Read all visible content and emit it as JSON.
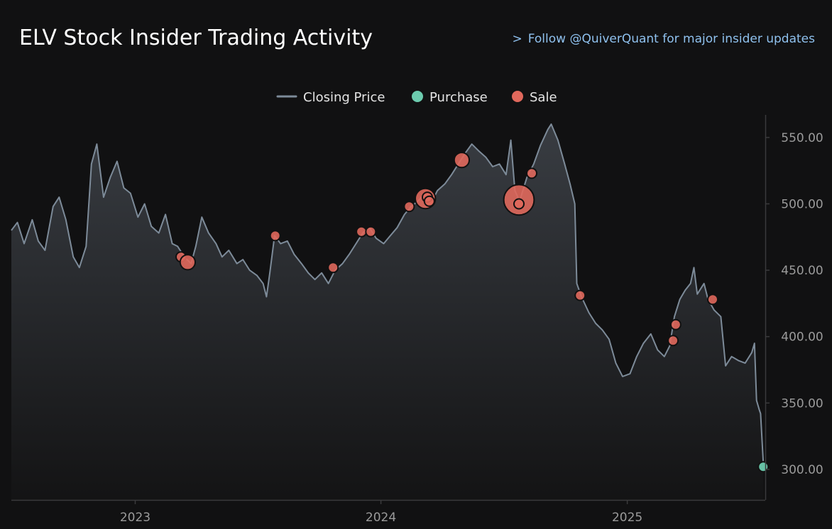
{
  "header": {
    "title": "ELV Stock Insider Trading Activity",
    "follow_chevron": ">",
    "follow_link": "Follow @QuiverQuant for major insider updates"
  },
  "colors": {
    "background": "#111112",
    "price_line": "#7d8b99",
    "purchase": "#6ccbae",
    "sale": "#e0685c",
    "link": "#8fc1ee"
  },
  "chart_data": {
    "type": "line",
    "title": "ELV Stock Insider Trading Activity",
    "xlabel": "",
    "ylabel": "",
    "legend_position": "top-center",
    "grid": false,
    "x_range": [
      "2022-07-01",
      "2025-07-25"
    ],
    "ylim": [
      277,
      567
    ],
    "x_ticks": [
      {
        "date": "2023-01-01",
        "label": "2023"
      },
      {
        "date": "2024-01-01",
        "label": "2024"
      },
      {
        "date": "2025-01-01",
        "label": "2025"
      }
    ],
    "y_ticks": [
      {
        "value": 300,
        "label": "300.00"
      },
      {
        "value": 350,
        "label": "350.00"
      },
      {
        "value": 400,
        "label": "400.00"
      },
      {
        "value": 450,
        "label": "450.00"
      },
      {
        "value": 500,
        "label": "500.00"
      },
      {
        "value": 550,
        "label": "550.00"
      }
    ],
    "series": [
      {
        "name": "Closing Price",
        "points": [
          [
            "2022-07-01",
            480
          ],
          [
            "2022-07-10",
            486
          ],
          [
            "2022-07-20",
            470
          ],
          [
            "2022-08-01",
            488
          ],
          [
            "2022-08-10",
            472
          ],
          [
            "2022-08-20",
            465
          ],
          [
            "2022-09-01",
            498
          ],
          [
            "2022-09-10",
            505
          ],
          [
            "2022-09-20",
            488
          ],
          [
            "2022-10-01",
            460
          ],
          [
            "2022-10-10",
            452
          ],
          [
            "2022-10-20",
            468
          ],
          [
            "2022-10-28",
            530
          ],
          [
            "2022-11-05",
            545
          ],
          [
            "2022-11-15",
            505
          ],
          [
            "2022-11-25",
            520
          ],
          [
            "2022-12-05",
            532
          ],
          [
            "2022-12-15",
            512
          ],
          [
            "2022-12-25",
            508
          ],
          [
            "2023-01-05",
            490
          ],
          [
            "2023-01-15",
            500
          ],
          [
            "2023-01-25",
            483
          ],
          [
            "2023-02-05",
            478
          ],
          [
            "2023-02-15",
            492
          ],
          [
            "2023-02-25",
            470
          ],
          [
            "2023-03-05",
            468
          ],
          [
            "2023-03-15",
            460
          ],
          [
            "2023-03-25",
            455
          ],
          [
            "2023-04-01",
            468
          ],
          [
            "2023-04-10",
            490
          ],
          [
            "2023-04-20",
            478
          ],
          [
            "2023-05-01",
            470
          ],
          [
            "2023-05-10",
            460
          ],
          [
            "2023-05-20",
            465
          ],
          [
            "2023-06-01",
            455
          ],
          [
            "2023-06-10",
            458
          ],
          [
            "2023-06-20",
            450
          ],
          [
            "2023-07-01",
            446
          ],
          [
            "2023-07-10",
            440
          ],
          [
            "2023-07-15",
            430
          ],
          [
            "2023-07-20",
            448
          ],
          [
            "2023-07-27",
            476
          ],
          [
            "2023-08-05",
            470
          ],
          [
            "2023-08-15",
            472
          ],
          [
            "2023-08-25",
            462
          ],
          [
            "2023-09-05",
            455
          ],
          [
            "2023-09-15",
            448
          ],
          [
            "2023-09-25",
            443
          ],
          [
            "2023-10-05",
            448
          ],
          [
            "2023-10-15",
            440
          ],
          [
            "2023-10-25",
            450
          ],
          [
            "2023-11-05",
            455
          ],
          [
            "2023-11-15",
            462
          ],
          [
            "2023-11-25",
            470
          ],
          [
            "2023-12-05",
            478
          ],
          [
            "2023-12-15",
            482
          ],
          [
            "2023-12-25",
            474
          ],
          [
            "2024-01-05",
            470
          ],
          [
            "2024-01-15",
            476
          ],
          [
            "2024-01-25",
            482
          ],
          [
            "2024-02-05",
            492
          ],
          [
            "2024-02-15",
            498
          ],
          [
            "2024-02-25",
            502
          ],
          [
            "2024-03-05",
            507
          ],
          [
            "2024-03-15",
            500
          ],
          [
            "2024-03-25",
            510
          ],
          [
            "2024-04-05",
            515
          ],
          [
            "2024-04-15",
            522
          ],
          [
            "2024-04-25",
            530
          ],
          [
            "2024-05-05",
            538
          ],
          [
            "2024-05-15",
            545
          ],
          [
            "2024-05-25",
            540
          ],
          [
            "2024-06-05",
            535
          ],
          [
            "2024-06-15",
            528
          ],
          [
            "2024-06-25",
            530
          ],
          [
            "2024-07-05",
            522
          ],
          [
            "2024-07-12",
            548
          ],
          [
            "2024-07-18",
            510
          ],
          [
            "2024-07-25",
            502
          ],
          [
            "2024-08-05",
            520
          ],
          [
            "2024-08-15",
            530
          ],
          [
            "2024-08-25",
            544
          ],
          [
            "2024-09-05",
            556
          ],
          [
            "2024-09-10",
            560
          ],
          [
            "2024-09-20",
            548
          ],
          [
            "2024-09-30",
            530
          ],
          [
            "2024-10-08",
            515
          ],
          [
            "2024-10-15",
            500
          ],
          [
            "2024-10-18",
            440
          ],
          [
            "2024-10-25",
            430
          ],
          [
            "2024-11-05",
            418
          ],
          [
            "2024-11-15",
            410
          ],
          [
            "2024-11-25",
            405
          ],
          [
            "2024-12-05",
            398
          ],
          [
            "2024-12-15",
            380
          ],
          [
            "2024-12-25",
            370
          ],
          [
            "2025-01-05",
            372
          ],
          [
            "2025-01-15",
            385
          ],
          [
            "2025-01-25",
            395
          ],
          [
            "2025-02-05",
            402
          ],
          [
            "2025-02-15",
            390
          ],
          [
            "2025-02-25",
            385
          ],
          [
            "2025-03-05",
            393
          ],
          [
            "2025-03-12",
            415
          ],
          [
            "2025-03-20",
            428
          ],
          [
            "2025-03-28",
            435
          ],
          [
            "2025-04-05",
            440
          ],
          [
            "2025-04-10",
            452
          ],
          [
            "2025-04-15",
            432
          ],
          [
            "2025-04-25",
            440
          ],
          [
            "2025-05-01",
            428
          ],
          [
            "2025-05-10",
            420
          ],
          [
            "2025-05-20",
            415
          ],
          [
            "2025-05-27",
            378
          ],
          [
            "2025-06-05",
            385
          ],
          [
            "2025-06-15",
            382
          ],
          [
            "2025-06-25",
            380
          ],
          [
            "2025-07-05",
            388
          ],
          [
            "2025-07-09",
            395
          ],
          [
            "2025-07-12",
            352
          ],
          [
            "2025-07-16",
            345
          ],
          [
            "2025-07-18",
            342
          ],
          [
            "2025-07-22",
            305
          ]
        ]
      },
      {
        "name": "Purchase",
        "points": [
          {
            "date": "2025-07-22",
            "value": 302,
            "size": 1
          }
        ]
      },
      {
        "name": "Sale",
        "points": [
          {
            "date": "2023-03-10",
            "value": 460,
            "size": 1
          },
          {
            "date": "2023-03-20",
            "value": 456,
            "size": 2
          },
          {
            "date": "2023-07-28",
            "value": 476,
            "size": 1
          },
          {
            "date": "2023-10-22",
            "value": 452,
            "size": 1
          },
          {
            "date": "2023-12-03",
            "value": 479,
            "size": 1
          },
          {
            "date": "2023-12-17",
            "value": 479,
            "size": 1
          },
          {
            "date": "2024-02-12",
            "value": 498,
            "size": 1
          },
          {
            "date": "2024-03-07",
            "value": 504,
            "size": 3
          },
          {
            "date": "2024-03-10",
            "value": 505,
            "size": 1
          },
          {
            "date": "2024-03-13",
            "value": 502,
            "size": 1
          },
          {
            "date": "2024-04-30",
            "value": 533,
            "size": 2
          },
          {
            "date": "2024-07-24",
            "value": 503,
            "size": 5
          },
          {
            "date": "2024-07-24",
            "value": 500,
            "size": 1
          },
          {
            "date": "2024-08-12",
            "value": 523,
            "size": 1
          },
          {
            "date": "2024-10-23",
            "value": 431,
            "size": 1
          },
          {
            "date": "2025-03-10",
            "value": 397,
            "size": 1
          },
          {
            "date": "2025-03-14",
            "value": 409,
            "size": 1
          },
          {
            "date": "2025-05-08",
            "value": 428,
            "size": 1
          }
        ]
      }
    ]
  }
}
